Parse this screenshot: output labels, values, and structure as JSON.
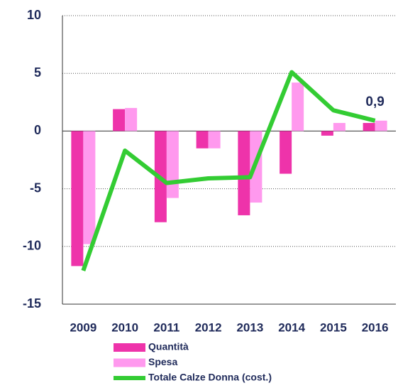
{
  "chart_data": {
    "type": "bar_line",
    "categories": [
      "2009",
      "2010",
      "2011",
      "2012",
      "2013",
      "2014",
      "2015",
      "2016"
    ],
    "series": [
      {
        "name": "Quantità",
        "type": "bar",
        "color": "#ee33aa",
        "values": [
          -11.7,
          1.9,
          -7.9,
          -1.5,
          -7.3,
          -3.7,
          -0.4,
          0.7
        ]
      },
      {
        "name": "Spesa",
        "type": "bar",
        "color": "#ff99ee",
        "values": [
          -9.8,
          2.0,
          -5.8,
          -1.5,
          -6.2,
          4.2,
          0.7,
          0.9
        ]
      },
      {
        "name": "Totale Calze Donna (cost.)",
        "type": "line",
        "color": "#33cc33",
        "values": [
          -12.1,
          -1.7,
          -4.5,
          -4.1,
          -4.0,
          5.1,
          1.8,
          0.9
        ],
        "value_labels": [
          null,
          null,
          null,
          null,
          null,
          null,
          null,
          "0,9"
        ]
      }
    ],
    "ylim": [
      -15,
      10
    ],
    "yticks": [
      -15,
      -10,
      -5,
      0,
      5,
      10
    ],
    "grid": true
  }
}
